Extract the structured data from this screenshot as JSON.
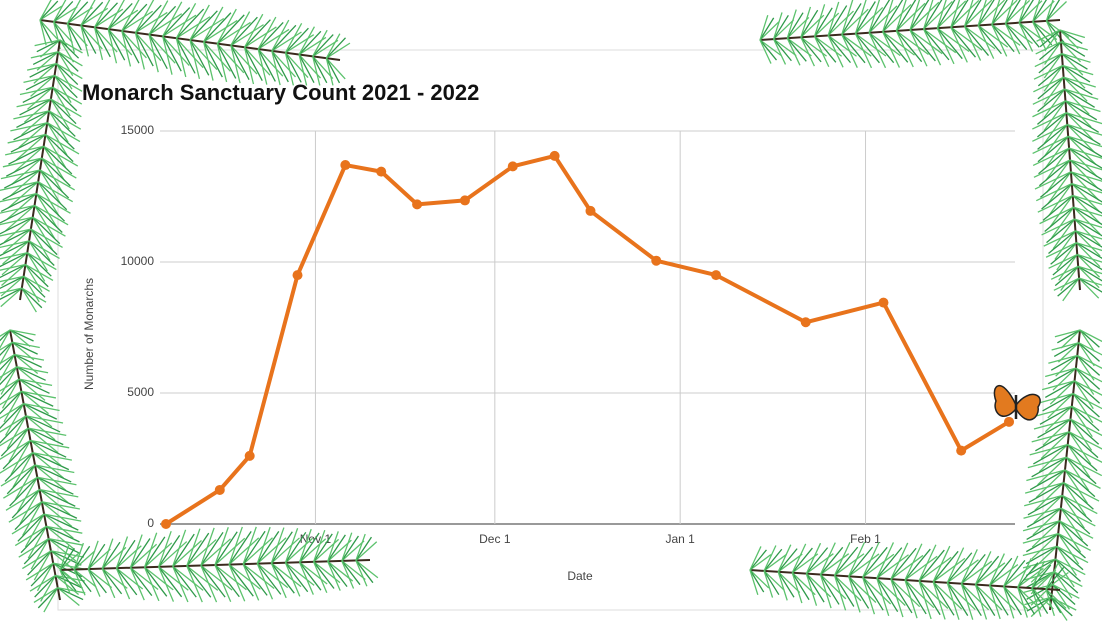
{
  "chart_data": {
    "type": "line",
    "title": "Monarch Sanctuary Count 2021 - 2022",
    "x_label": "Date",
    "y_label": "Number of Monarchs",
    "x": [
      "Oct 7",
      "Oct 16",
      "Oct 21",
      "Oct 29",
      "Nov 6",
      "Nov 12",
      "Nov 18",
      "Nov 26",
      "Dec 4",
      "Dec 11",
      "Dec 17",
      "Dec 28",
      "Jan 7",
      "Jan 22",
      "Feb 4",
      "Feb 17",
      "Feb 25"
    ],
    "series": [
      {
        "name": "Monarchs",
        "color": "#e8731c",
        "values": [
          0,
          1300,
          2600,
          9500,
          13700,
          13450,
          12200,
          12350,
          13650,
          14050,
          11950,
          10050,
          9500,
          7700,
          8450,
          2800,
          3900
        ]
      }
    ],
    "xlim": [
      "Oct 6",
      "Feb 26"
    ],
    "xticks": [
      "Nov 1",
      "Dec 1",
      "Jan 1",
      "Feb 1"
    ],
    "ylim": [
      0,
      15000
    ],
    "yticks": [
      0,
      5000,
      10000,
      15000
    ],
    "grid": true
  }
}
